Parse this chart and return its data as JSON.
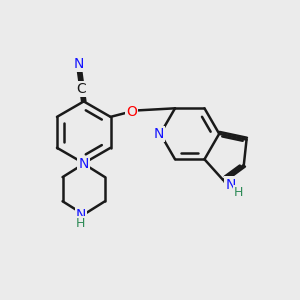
{
  "background_color": "#ebebeb",
  "bond_color": "#1a1a1a",
  "bond_width": 1.8,
  "atom_colors": {
    "C": "#1a1a1a",
    "N": "#1414ff",
    "O": "#ff0000",
    "NH_color": "#2e8b57",
    "H_color": "#2e8b57"
  },
  "font_size": 10,
  "figsize": [
    3.0,
    3.0
  ],
  "dpi": 100
}
